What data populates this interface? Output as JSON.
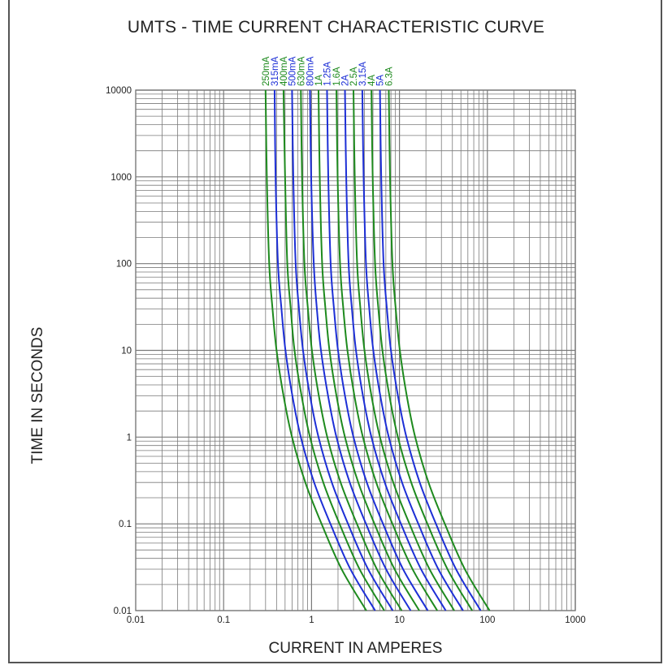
{
  "colors": {
    "green": "#1e8a1e",
    "blue": "#1d2fd6",
    "grid": "#7a7a7a"
  },
  "chart_data": {
    "type": "line",
    "title": "UMTS  - TIME CURRENT CHARACTERISTIC CURVE",
    "xlabel": "CURRENT IN AMPERES",
    "ylabel": "TIME IN SECONDS",
    "x_scale": "log",
    "y_scale": "log",
    "xlim": [
      0.01,
      1000
    ],
    "ylim": [
      0.01,
      10000
    ],
    "grid": true,
    "x_ticks": [
      "0.01",
      "0.1",
      "1",
      "10",
      "100",
      "1000"
    ],
    "y_ticks": [
      "10000",
      "1000",
      "100",
      "10",
      "1",
      "0.1",
      "0.01"
    ],
    "series": [
      {
        "name": "250mA",
        "color": "green",
        "points": [
          [
            0.3,
            10000
          ],
          [
            0.31,
            1000
          ],
          [
            0.33,
            100
          ],
          [
            0.36,
            30
          ],
          [
            0.4,
            10
          ],
          [
            0.48,
            3
          ],
          [
            0.6,
            1
          ],
          [
            0.85,
            0.3
          ],
          [
            1.3,
            0.1
          ],
          [
            2.2,
            0.03
          ],
          [
            4.2,
            0.01
          ]
        ]
      },
      {
        "name": "315mA",
        "color": "blue",
        "points": [
          [
            0.38,
            10000
          ],
          [
            0.39,
            1000
          ],
          [
            0.415,
            100
          ],
          [
            0.455,
            30
          ],
          [
            0.505,
            10
          ],
          [
            0.605,
            3
          ],
          [
            0.755,
            1
          ],
          [
            1.07,
            0.3
          ],
          [
            1.64,
            0.1
          ],
          [
            2.77,
            0.03
          ],
          [
            5.29,
            0.01
          ]
        ]
      },
      {
        "name": "400mA",
        "color": "green",
        "points": [
          [
            0.48,
            10000
          ],
          [
            0.5,
            1000
          ],
          [
            0.53,
            100
          ],
          [
            0.58,
            30
          ],
          [
            0.64,
            10
          ],
          [
            0.77,
            3
          ],
          [
            0.96,
            1
          ],
          [
            1.36,
            0.3
          ],
          [
            2.08,
            0.1
          ],
          [
            3.52,
            0.03
          ],
          [
            6.72,
            0.01
          ]
        ]
      },
      {
        "name": "500mA",
        "color": "blue",
        "points": [
          [
            0.6,
            10000
          ],
          [
            0.62,
            1000
          ],
          [
            0.66,
            100
          ],
          [
            0.72,
            30
          ],
          [
            0.8,
            10
          ],
          [
            0.96,
            3
          ],
          [
            1.2,
            1
          ],
          [
            1.7,
            0.3
          ],
          [
            2.6,
            0.1
          ],
          [
            4.4,
            0.03
          ],
          [
            8.4,
            0.01
          ]
        ]
      },
      {
        "name": "630mA",
        "color": "green",
        "points": [
          [
            0.756,
            10000
          ],
          [
            0.78,
            1000
          ],
          [
            0.83,
            100
          ],
          [
            0.91,
            30
          ],
          [
            1.01,
            10
          ],
          [
            1.21,
            3
          ],
          [
            1.51,
            1
          ],
          [
            2.14,
            0.3
          ],
          [
            3.28,
            0.1
          ],
          [
            5.54,
            0.03
          ],
          [
            10.6,
            0.01
          ]
        ]
      },
      {
        "name": "800mA",
        "color": "blue",
        "points": [
          [
            0.96,
            10000
          ],
          [
            0.99,
            1000
          ],
          [
            1.06,
            100
          ],
          [
            1.15,
            30
          ],
          [
            1.28,
            10
          ],
          [
            1.54,
            3
          ],
          [
            1.92,
            1
          ],
          [
            2.72,
            0.3
          ],
          [
            4.16,
            0.1
          ],
          [
            7.04,
            0.03
          ],
          [
            13.4,
            0.01
          ]
        ]
      },
      {
        "name": "1A",
        "color": "green",
        "points": [
          [
            1.2,
            10000
          ],
          [
            1.24,
            1000
          ],
          [
            1.32,
            100
          ],
          [
            1.44,
            30
          ],
          [
            1.6,
            10
          ],
          [
            1.92,
            3
          ],
          [
            2.4,
            1
          ],
          [
            3.4,
            0.3
          ],
          [
            5.2,
            0.1
          ],
          [
            8.8,
            0.03
          ],
          [
            16.8,
            0.01
          ]
        ]
      },
      {
        "name": "1.25A",
        "color": "blue",
        "points": [
          [
            1.5,
            10000
          ],
          [
            1.55,
            1000
          ],
          [
            1.65,
            100
          ],
          [
            1.8,
            30
          ],
          [
            2.0,
            10
          ],
          [
            2.4,
            3
          ],
          [
            3.0,
            1
          ],
          [
            4.25,
            0.3
          ],
          [
            6.5,
            0.1
          ],
          [
            11.0,
            0.03
          ],
          [
            21.0,
            0.01
          ]
        ]
      },
      {
        "name": "1.6A",
        "color": "green",
        "points": [
          [
            1.92,
            10000
          ],
          [
            1.98,
            1000
          ],
          [
            2.11,
            100
          ],
          [
            2.3,
            30
          ],
          [
            2.56,
            10
          ],
          [
            3.07,
            3
          ],
          [
            3.84,
            1
          ],
          [
            5.44,
            0.3
          ],
          [
            8.32,
            0.1
          ],
          [
            14.1,
            0.03
          ],
          [
            26.9,
            0.01
          ]
        ]
      },
      {
        "name": "2A",
        "color": "blue",
        "points": [
          [
            2.4,
            10000
          ],
          [
            2.48,
            1000
          ],
          [
            2.64,
            100
          ],
          [
            2.88,
            30
          ],
          [
            3.2,
            10
          ],
          [
            3.84,
            3
          ],
          [
            4.8,
            1
          ],
          [
            6.8,
            0.3
          ],
          [
            10.4,
            0.1
          ],
          [
            17.6,
            0.03
          ],
          [
            33.6,
            0.01
          ]
        ]
      },
      {
        "name": "2.5A",
        "color": "green",
        "points": [
          [
            3.0,
            10000
          ],
          [
            3.1,
            1000
          ],
          [
            3.3,
            100
          ],
          [
            3.6,
            30
          ],
          [
            4.0,
            10
          ],
          [
            4.8,
            3
          ],
          [
            6.0,
            1
          ],
          [
            8.5,
            0.3
          ],
          [
            13.0,
            0.1
          ],
          [
            22.0,
            0.03
          ],
          [
            42.0,
            0.01
          ]
        ]
      },
      {
        "name": "3.15A",
        "color": "blue",
        "points": [
          [
            3.78,
            10000
          ],
          [
            3.91,
            1000
          ],
          [
            4.16,
            100
          ],
          [
            4.54,
            30
          ],
          [
            5.04,
            10
          ],
          [
            6.05,
            3
          ],
          [
            7.56,
            1
          ],
          [
            10.7,
            0.3
          ],
          [
            16.4,
            0.1
          ],
          [
            27.7,
            0.03
          ],
          [
            52.9,
            0.01
          ]
        ]
      },
      {
        "name": "4A",
        "color": "green",
        "points": [
          [
            4.8,
            10000
          ],
          [
            4.96,
            1000
          ],
          [
            5.28,
            100
          ],
          [
            5.76,
            30
          ],
          [
            6.4,
            10
          ],
          [
            7.68,
            3
          ],
          [
            9.6,
            1
          ],
          [
            13.6,
            0.3
          ],
          [
            20.8,
            0.1
          ],
          [
            35.2,
            0.03
          ],
          [
            67.2,
            0.01
          ]
        ]
      },
      {
        "name": "5A",
        "color": "blue",
        "points": [
          [
            6.0,
            10000
          ],
          [
            6.2,
            1000
          ],
          [
            6.6,
            100
          ],
          [
            7.2,
            30
          ],
          [
            8.0,
            10
          ],
          [
            9.6,
            3
          ],
          [
            12.0,
            1
          ],
          [
            17.0,
            0.3
          ],
          [
            26.0,
            0.1
          ],
          [
            44.0,
            0.03
          ],
          [
            84.0,
            0.01
          ]
        ]
      },
      {
        "name": "6.3A",
        "color": "green",
        "points": [
          [
            7.56,
            10000
          ],
          [
            7.81,
            1000
          ],
          [
            8.32,
            100
          ],
          [
            9.07,
            30
          ],
          [
            10.1,
            10
          ],
          [
            12.1,
            3
          ],
          [
            15.1,
            1
          ],
          [
            21.4,
            0.3
          ],
          [
            32.8,
            0.1
          ],
          [
            55.4,
            0.03
          ],
          [
            106,
            0.01
          ]
        ]
      }
    ]
  }
}
